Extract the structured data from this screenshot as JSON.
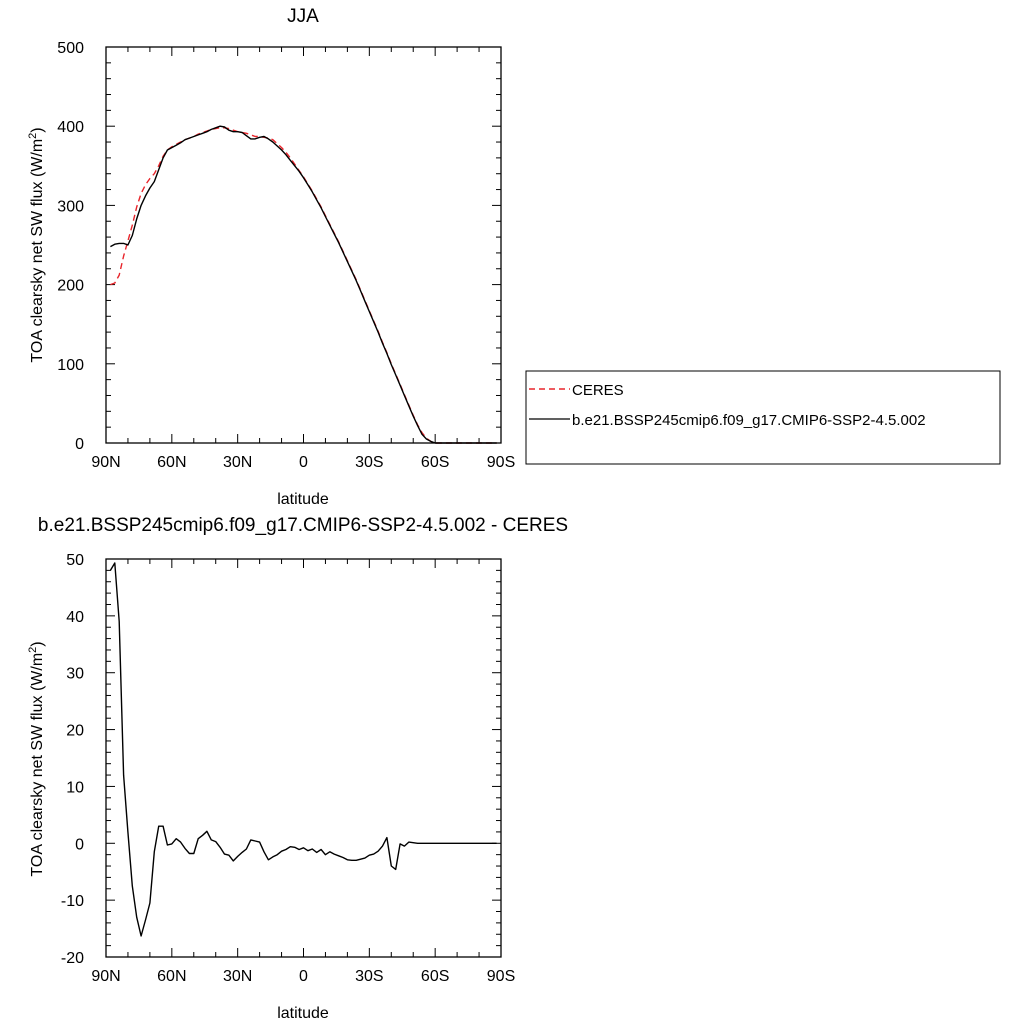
{
  "chart_data": [
    {
      "type": "line",
      "title": "JJA",
      "xlabel": "latitude",
      "ylabel": "TOA clearsky net SW flux (W/m",
      "ylabel_sup": "2",
      "ylabel_tail": ")",
      "xlim": [
        90,
        -90
      ],
      "ylim": [
        0,
        500
      ],
      "x_ticks": [
        90,
        60,
        30,
        0,
        -30,
        -60,
        -90
      ],
      "x_tick_labels": [
        "90N",
        "60N",
        "30N",
        "0",
        "30S",
        "60S",
        "90S"
      ],
      "y_ticks": [
        0,
        100,
        200,
        300,
        400,
        500
      ],
      "y_tick_labels": [
        "0",
        "100",
        "200",
        "300",
        "400",
        "500"
      ],
      "legend_position": "right",
      "series": [
        {
          "name": "CERES",
          "color": "#e8252b",
          "dash": "dashed",
          "x": [
            88,
            86,
            84,
            82,
            80,
            78,
            76,
            74,
            72,
            70,
            68,
            66,
            64,
            62,
            60,
            58,
            56,
            54,
            52,
            50,
            48,
            46,
            44,
            42,
            40,
            38,
            36,
            34,
            32,
            30,
            28,
            26,
            24,
            22,
            20,
            18,
            16,
            14,
            12,
            10,
            8,
            6,
            4,
            2,
            0,
            -2,
            -4,
            -6,
            -8,
            -10,
            -12,
            -14,
            -16,
            -18,
            -20,
            -22,
            -24,
            -26,
            -28,
            -30,
            -32,
            -34,
            -36,
            -38,
            -40,
            -42,
            -44,
            -46,
            -48,
            -50,
            -52,
            -54,
            -56,
            -58,
            -60,
            -62,
            -64,
            -66,
            -68,
            -70,
            -72,
            -74,
            -76,
            -78,
            -80,
            -82,
            -84,
            -86,
            -88
          ],
          "y": [
            200,
            202,
            212,
            236,
            255,
            275,
            298,
            315,
            326,
            334,
            340,
            350,
            362,
            370,
            374,
            377,
            380,
            383,
            385,
            387,
            390,
            392,
            394,
            396,
            397,
            398,
            398,
            397,
            395,
            393,
            392,
            391,
            389,
            387,
            387,
            386,
            385,
            383,
            378,
            373,
            367,
            360,
            352,
            344,
            336,
            327,
            318,
            308,
            298,
            287,
            276,
            265,
            254,
            242,
            230,
            218,
            206,
            193,
            180,
            167,
            154,
            141,
            127,
            114,
            100,
            87,
            74,
            61,
            48,
            35,
            23,
            13,
            6,
            2,
            0,
            0,
            0,
            0,
            0,
            0,
            0,
            0,
            0,
            0,
            0,
            0,
            0,
            0,
            0
          ]
        },
        {
          "name": "b.e21.BSSP245cmip6.f09_g17.CMIP6-SSP2-4.5.002",
          "color": "#000000",
          "dash": "solid",
          "x": [
            88,
            86,
            84,
            82,
            80,
            78,
            76,
            74,
            72,
            70,
            68,
            66,
            64,
            62,
            60,
            58,
            56,
            54,
            52,
            50,
            48,
            46,
            44,
            42,
            40,
            38,
            36,
            34,
            32,
            30,
            28,
            26,
            24,
            22,
            20,
            18,
            16,
            14,
            12,
            10,
            8,
            6,
            4,
            2,
            0,
            -2,
            -4,
            -6,
            -8,
            -10,
            -12,
            -14,
            -16,
            -18,
            -20,
            -22,
            -24,
            -26,
            -28,
            -30,
            -32,
            -34,
            -36,
            -38,
            -40,
            -42,
            -44,
            -46,
            -48,
            -50,
            -52,
            -54,
            -56,
            -58,
            -60,
            -62,
            -64,
            -66,
            -68,
            -70,
            -72,
            -74,
            -76,
            -78,
            -80,
            -82,
            -84,
            -86,
            -88
          ],
          "y": [
            248,
            251,
            252,
            252,
            250,
            262,
            283,
            300,
            312,
            322,
            330,
            345,
            360,
            370,
            373,
            376,
            379,
            383,
            385,
            387,
            389,
            391,
            393,
            396,
            398,
            400,
            399,
            395,
            393,
            393,
            392,
            388,
            384,
            384,
            386,
            387,
            384,
            380,
            375,
            370,
            364,
            357,
            350,
            343,
            335,
            326,
            317,
            307,
            297,
            286,
            275,
            264,
            253,
            241,
            229,
            217,
            205,
            192,
            179,
            166,
            153,
            140,
            126,
            113,
            99,
            86,
            73,
            60,
            47,
            34,
            22,
            11,
            5,
            2,
            0,
            0,
            0,
            0,
            0,
            0,
            0,
            0,
            0,
            0,
            0,
            0,
            0,
            0,
            0
          ]
        }
      ]
    },
    {
      "type": "line",
      "title": "b.e21.BSSP245cmip6.f09_g17.CMIP6-SSP2-4.5.002 - CERES",
      "xlabel": "latitude",
      "ylabel": "TOA clearsky net SW flux (W/m",
      "ylabel_sup": "2",
      "ylabel_tail": ")",
      "xlim": [
        90,
        -90
      ],
      "ylim": [
        -20,
        50
      ],
      "x_ticks": [
        90,
        60,
        30,
        0,
        -30,
        -60,
        -90
      ],
      "x_tick_labels": [
        "90N",
        "60N",
        "30N",
        "0",
        "30S",
        "60S",
        "90S"
      ],
      "y_ticks": [
        -20,
        -10,
        0,
        10,
        20,
        30,
        40,
        50
      ],
      "y_tick_labels": [
        "-20",
        "-10",
        "0",
        "10",
        "20",
        "30",
        "40",
        "50"
      ],
      "series": [
        {
          "color": "#000000",
          "dash": "solid",
          "x": [
            88,
            86,
            84,
            82,
            80,
            78,
            76,
            74,
            72,
            70,
            68,
            66,
            64,
            62,
            60,
            58,
            56,
            54,
            52,
            50,
            48,
            46,
            44,
            42,
            40,
            38,
            36,
            34,
            32,
            30,
            28,
            26,
            24,
            22,
            20,
            18,
            16,
            14,
            12,
            10,
            8,
            6,
            4,
            2,
            0,
            -2,
            -4,
            -6,
            -8,
            -10,
            -12,
            -14,
            -16,
            -18,
            -20,
            -22,
            -24,
            -26,
            -28,
            -30,
            -32,
            -34,
            -36,
            -38,
            -40,
            -42,
            -44,
            -46,
            -48,
            -50,
            -52,
            -54,
            -56,
            -58,
            -60,
            -62,
            -64,
            -66,
            -68,
            -70,
            -72,
            -74,
            -76,
            -78,
            -80,
            -82,
            -84,
            -86,
            -88
          ],
          "y": [
            48,
            49.3,
            39,
            12,
            2,
            -7.5,
            -13,
            -16.3,
            -13.5,
            -10.5,
            -1.5,
            3,
            3,
            -0.3,
            -0.1,
            0.8,
            0.2,
            -0.9,
            -1.8,
            -1.8,
            0.8,
            1.4,
            2.1,
            0.6,
            0.3,
            -0.7,
            -1.9,
            -2.1,
            -3.1,
            -2.3,
            -1.6,
            -1,
            0.6,
            0.4,
            0.2,
            -1.5,
            -2.9,
            -2.4,
            -2,
            -1.4,
            -1.1,
            -0.6,
            -0.7,
            -1.1,
            -0.8,
            -1.3,
            -1,
            -1.6,
            -1.1,
            -2,
            -1.5,
            -1.9,
            -2.2,
            -2.5,
            -2.9,
            -3,
            -3,
            -2.8,
            -2.6,
            -2.1,
            -1.9,
            -1.4,
            -0.5,
            1,
            -4,
            -4.6,
            -0.1,
            -0.5,
            0.2,
            0.1,
            0,
            0,
            0,
            0,
            0,
            0,
            0,
            0,
            0,
            0,
            0,
            0,
            0,
            0,
            0,
            0,
            0,
            0,
            0
          ]
        }
      ]
    }
  ]
}
